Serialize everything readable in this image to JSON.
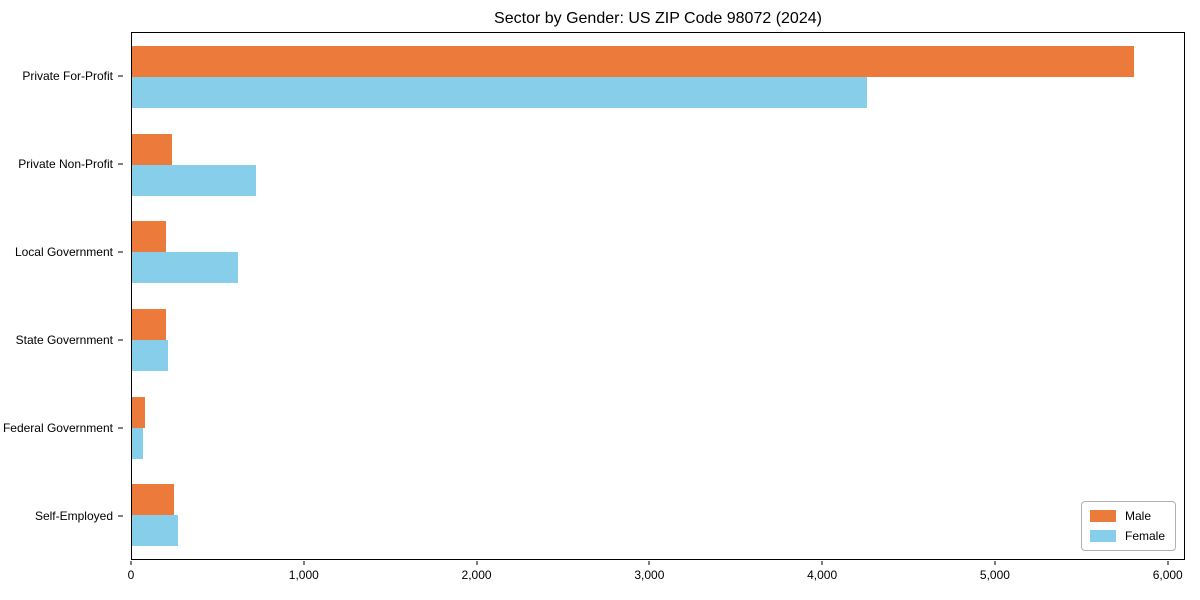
{
  "chart_data": {
    "type": "bar",
    "orientation": "horizontal",
    "title": "Sector by Gender: US ZIP Code 98072 (2024)",
    "categories": [
      "Private For-Profit",
      "Private Non-Profit",
      "Local Government",
      "State Government",
      "Federal Government",
      "Self-Employed"
    ],
    "series": [
      {
        "name": "Male",
        "color": "#EB7A3B",
        "values": [
          5810,
          230,
          200,
          200,
          75,
          245
        ]
      },
      {
        "name": "Female",
        "color": "#87CEEB",
        "values": [
          4260,
          720,
          615,
          210,
          65,
          265
        ]
      }
    ],
    "xlabel": "",
    "ylabel": "",
    "xlim": [
      0,
      6100
    ],
    "xticks": [
      0,
      1000,
      2000,
      3000,
      4000,
      5000,
      6000
    ],
    "xtick_labels": [
      "0",
      "1,000",
      "2,000",
      "3,000",
      "4,000",
      "5,000",
      "6,000"
    ],
    "grid": false,
    "legend": {
      "position": "lower right",
      "entries": [
        "Male",
        "Female"
      ]
    }
  }
}
